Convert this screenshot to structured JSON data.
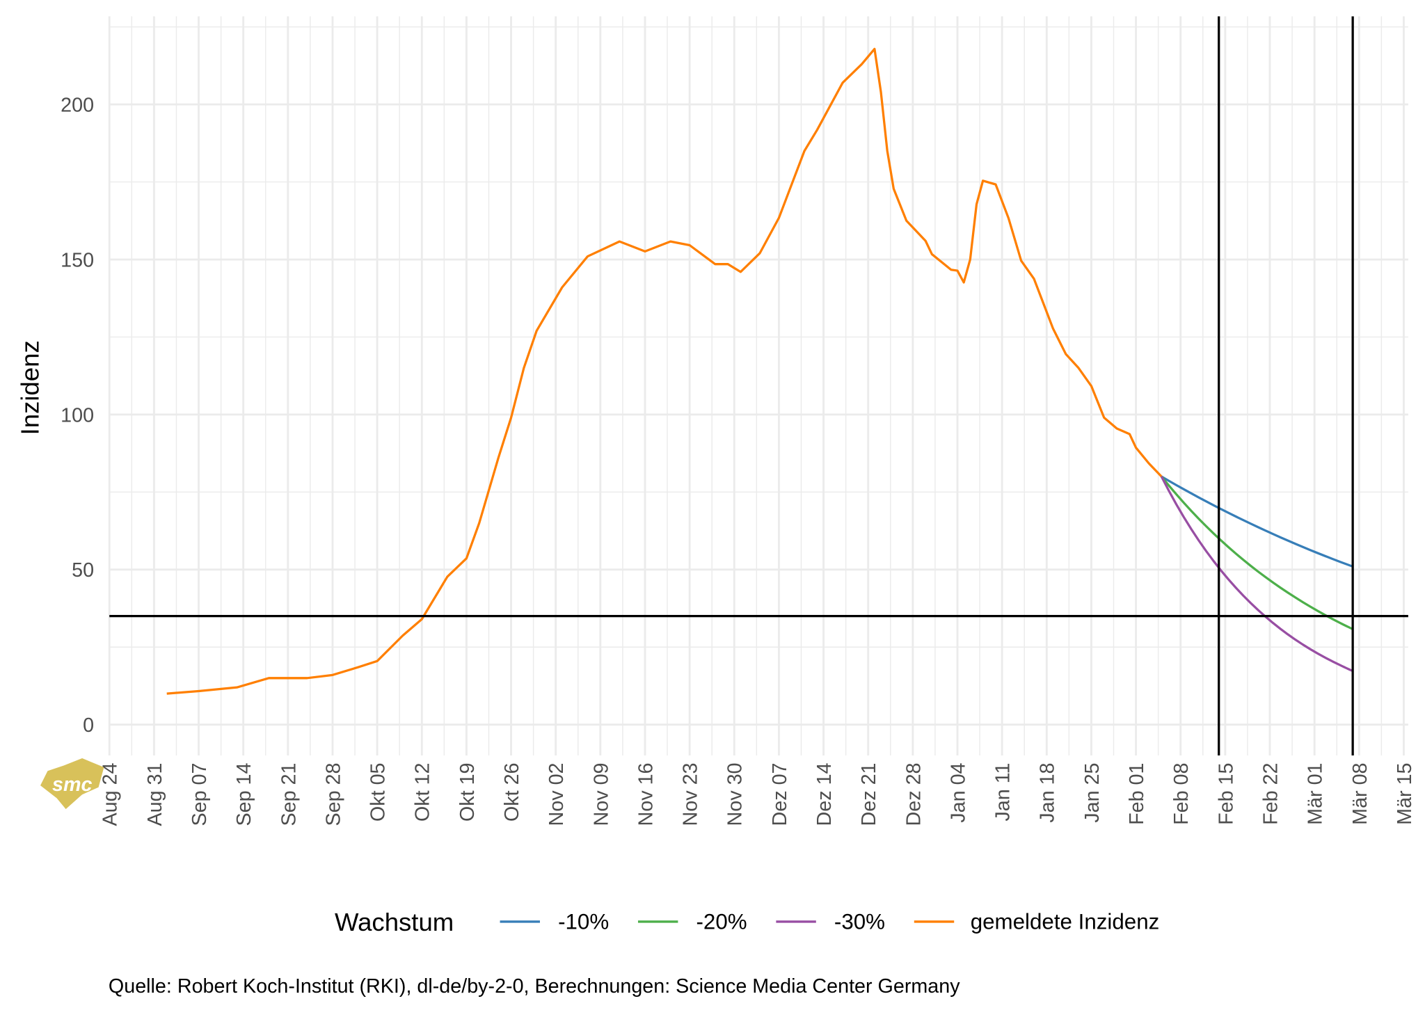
{
  "chart_data": {
    "type": "line",
    "title": "",
    "xlabel": "",
    "ylabel": "Inzidenz",
    "xlim": [
      "2020-08-24",
      "2021-03-15"
    ],
    "ylim": [
      -10,
      225
    ],
    "y_ticks": [
      0,
      50,
      100,
      150,
      200
    ],
    "x_ticks": [
      {
        "date": "2020-08-24",
        "label": "Aug 24"
      },
      {
        "date": "2020-08-31",
        "label": "Aug 31"
      },
      {
        "date": "2020-09-07",
        "label": "Sep 07"
      },
      {
        "date": "2020-09-14",
        "label": "Sep 14"
      },
      {
        "date": "2020-09-21",
        "label": "Sep 21"
      },
      {
        "date": "2020-09-28",
        "label": "Sep 28"
      },
      {
        "date": "2020-10-05",
        "label": "Okt 05"
      },
      {
        "date": "2020-10-12",
        "label": "Okt 12"
      },
      {
        "date": "2020-10-19",
        "label": "Okt 19"
      },
      {
        "date": "2020-10-26",
        "label": "Okt 26"
      },
      {
        "date": "2020-11-02",
        "label": "Nov 02"
      },
      {
        "date": "2020-11-09",
        "label": "Nov 09"
      },
      {
        "date": "2020-11-16",
        "label": "Nov 16"
      },
      {
        "date": "2020-11-23",
        "label": "Nov 23"
      },
      {
        "date": "2020-11-30",
        "label": "Nov 30"
      },
      {
        "date": "2020-12-07",
        "label": "Dez 07"
      },
      {
        "date": "2020-12-14",
        "label": "Dez 14"
      },
      {
        "date": "2020-12-21",
        "label": "Dez 21"
      },
      {
        "date": "2020-12-28",
        "label": "Dez 28"
      },
      {
        "date": "2021-01-04",
        "label": "Jan 04"
      },
      {
        "date": "2021-01-11",
        "label": "Jan 11"
      },
      {
        "date": "2021-01-18",
        "label": "Jan 18"
      },
      {
        "date": "2021-01-25",
        "label": "Jan 25"
      },
      {
        "date": "2021-02-01",
        "label": "Feb 01"
      },
      {
        "date": "2021-02-08",
        "label": "Feb 08"
      },
      {
        "date": "2021-02-15",
        "label": "Feb 15"
      },
      {
        "date": "2021-02-22",
        "label": "Feb 22"
      },
      {
        "date": "2021-03-01",
        "label": "Mär 01"
      },
      {
        "date": "2021-03-08",
        "label": "Mär 08"
      },
      {
        "date": "2021-03-15",
        "label": "Mär 15"
      }
    ],
    "grid": true,
    "reference_lines": {
      "horizontal": [
        35
      ],
      "vertical": [
        "2021-02-14",
        "2021-03-07"
      ]
    },
    "legend": {
      "title": "Wachstum",
      "placement": "bottom"
    },
    "series": [
      {
        "name": "-10%",
        "color": "#377EB8",
        "points": [
          [
            "2021-02-05",
            80
          ],
          [
            "2021-02-12",
            72
          ],
          [
            "2021-02-19",
            64.8
          ],
          [
            "2021-02-26",
            58.3
          ],
          [
            "2021-03-05",
            52.5
          ],
          [
            "2021-03-07",
            51.0
          ]
        ]
      },
      {
        "name": "-20%",
        "color": "#4DAF4A",
        "points": [
          [
            "2021-02-05",
            80
          ],
          [
            "2021-02-12",
            64
          ],
          [
            "2021-02-19",
            51.2
          ],
          [
            "2021-02-26",
            41.0
          ],
          [
            "2021-03-05",
            32.8
          ],
          [
            "2021-03-07",
            30.8
          ]
        ]
      },
      {
        "name": "-30%",
        "color": "#984EA3",
        "points": [
          [
            "2021-02-05",
            80
          ],
          [
            "2021-02-12",
            56
          ],
          [
            "2021-02-19",
            39.2
          ],
          [
            "2021-02-26",
            27.4
          ],
          [
            "2021-03-05",
            19.2
          ],
          [
            "2021-03-07",
            17.3
          ]
        ]
      },
      {
        "name": "gemeldete Inzidenz",
        "color": "#FF7F00",
        "points": [
          [
            "2020-09-02",
            10
          ],
          [
            "2020-09-07",
            10.8
          ],
          [
            "2020-09-13",
            12
          ],
          [
            "2020-09-18",
            15
          ],
          [
            "2020-09-21",
            15
          ],
          [
            "2020-09-24",
            15
          ],
          [
            "2020-09-28",
            16
          ],
          [
            "2020-10-02",
            18.5
          ],
          [
            "2020-10-05",
            20.5
          ],
          [
            "2020-10-09",
            28.7
          ],
          [
            "2020-10-12",
            34
          ],
          [
            "2020-10-16",
            47.7
          ],
          [
            "2020-10-19",
            53.6
          ],
          [
            "2020-10-21",
            65
          ],
          [
            "2020-10-24",
            86
          ],
          [
            "2020-10-26",
            99
          ],
          [
            "2020-10-28",
            115
          ],
          [
            "2020-10-30",
            127
          ],
          [
            "2020-11-03",
            141
          ],
          [
            "2020-11-07",
            151
          ],
          [
            "2020-11-12",
            155.8
          ],
          [
            "2020-11-16",
            152.6
          ],
          [
            "2020-11-20",
            155.8
          ],
          [
            "2020-11-23",
            154.6
          ],
          [
            "2020-11-27",
            148.5
          ],
          [
            "2020-11-29",
            148.5
          ],
          [
            "2020-12-01",
            146
          ],
          [
            "2020-12-04",
            152
          ],
          [
            "2020-12-07",
            163.4
          ],
          [
            "2020-12-11",
            185
          ],
          [
            "2020-12-13",
            191.8
          ],
          [
            "2020-12-17",
            207
          ],
          [
            "2020-12-20",
            213
          ],
          [
            "2020-12-22",
            217.9
          ],
          [
            "2020-12-23",
            204
          ],
          [
            "2020-12-24",
            185
          ],
          [
            "2020-12-25",
            172.8
          ],
          [
            "2020-12-27",
            162.5
          ],
          [
            "2020-12-30",
            156
          ],
          [
            "2020-12-31",
            151.7
          ],
          [
            "2021-01-03",
            146.7
          ],
          [
            "2021-01-04",
            146.4
          ],
          [
            "2021-01-05",
            142.6
          ],
          [
            "2021-01-06",
            150
          ],
          [
            "2021-01-07",
            167.8
          ],
          [
            "2021-01-08",
            175.4
          ],
          [
            "2021-01-10",
            174.2
          ],
          [
            "2021-01-12",
            163.4
          ],
          [
            "2021-01-14",
            149.6
          ],
          [
            "2021-01-16",
            143.8
          ],
          [
            "2021-01-19",
            127.7
          ],
          [
            "2021-01-21",
            119.5
          ],
          [
            "2021-01-23",
            115
          ],
          [
            "2021-01-25",
            109.2
          ],
          [
            "2021-01-27",
            99
          ],
          [
            "2021-01-29",
            95.5
          ],
          [
            "2021-01-31",
            93.7
          ],
          [
            "2021-02-01",
            89.3
          ],
          [
            "2021-02-03",
            84.3
          ],
          [
            "2021-02-05",
            80
          ]
        ]
      }
    ],
    "caption": "Quelle: Robert Koch-Institut (RKI), dl-de/by-2-0, Berechnungen: Science Media Center Germany",
    "logo_text": "smc"
  }
}
